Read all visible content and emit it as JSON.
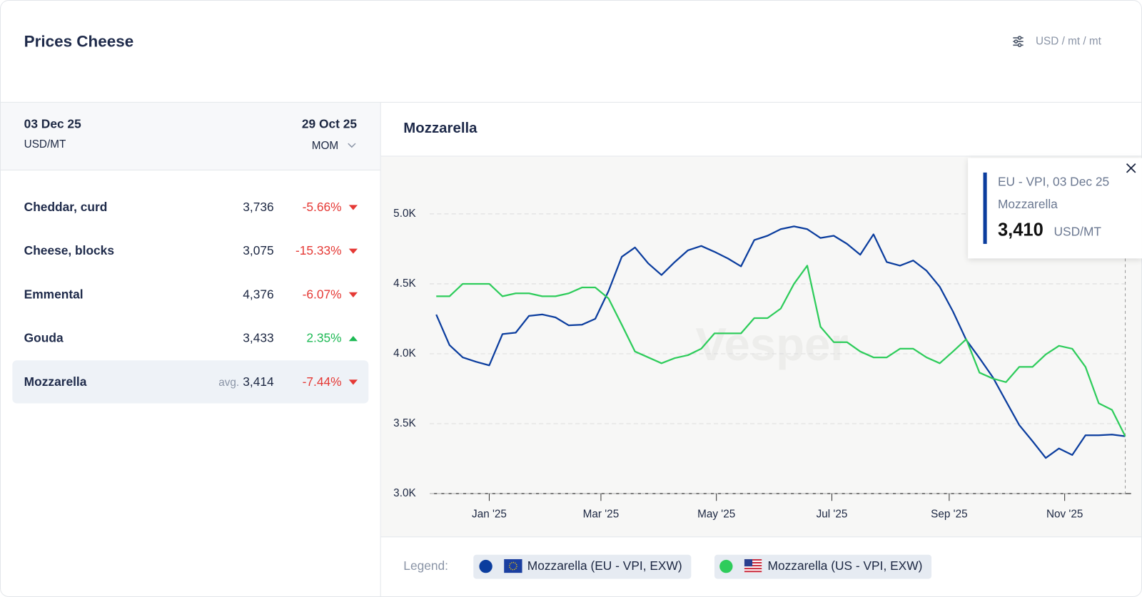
{
  "header": {
    "title": "Prices Cheese",
    "unit_selector": "USD / mt / mt"
  },
  "table": {
    "date": "03 Dec 25",
    "unit": "USD/MT",
    "compare_date": "29 Oct 25",
    "period": "MOM",
    "rows": [
      {
        "name": "Cheddar, curd",
        "price": "3,736",
        "change": "-5.66%",
        "trend": "down"
      },
      {
        "name": "Cheese, blocks",
        "price": "3,075",
        "change": "-15.33%",
        "trend": "down"
      },
      {
        "name": "Emmental",
        "price": "4,376",
        "change": "-6.07%",
        "trend": "down"
      },
      {
        "name": "Gouda",
        "price": "3,433",
        "change": "2.35%",
        "trend": "up"
      },
      {
        "name": "Mozzarella",
        "price_prefix": "avg.",
        "price": "3,414",
        "change": "-7.44%",
        "trend": "down",
        "selected": true
      }
    ]
  },
  "chart_data": {
    "type": "line",
    "title": "Mozzarella",
    "watermark": "Vesper",
    "legend_title": "Legend:",
    "x": [
      "2024-12-04",
      "2024-12-11",
      "2024-12-18",
      "2024-12-25",
      "2025-01-01",
      "2025-01-08",
      "2025-01-15",
      "2025-01-22",
      "2025-01-29",
      "2025-02-05",
      "2025-02-12",
      "2025-02-19",
      "2025-02-26",
      "2025-03-05",
      "2025-03-12",
      "2025-03-19",
      "2025-03-26",
      "2025-04-02",
      "2025-04-09",
      "2025-04-16",
      "2025-04-23",
      "2025-04-30",
      "2025-05-07",
      "2025-05-14",
      "2025-05-21",
      "2025-05-28",
      "2025-06-04",
      "2025-06-11",
      "2025-06-18",
      "2025-06-25",
      "2025-07-02",
      "2025-07-09",
      "2025-07-16",
      "2025-07-23",
      "2025-07-30",
      "2025-08-06",
      "2025-08-13",
      "2025-08-20",
      "2025-08-27",
      "2025-09-03",
      "2025-09-10",
      "2025-09-17",
      "2025-09-24",
      "2025-10-01",
      "2025-10-08",
      "2025-10-15",
      "2025-10-22",
      "2025-10-29",
      "2025-11-05",
      "2025-11-12",
      "2025-11-19",
      "2025-11-26",
      "2025-12-03"
    ],
    "xlim": [
      "2024-12-04",
      "2025-12-03"
    ],
    "xticks": [
      {
        "value": "2025-01-01",
        "label": "Jan '25"
      },
      {
        "value": "2025-03-01",
        "label": "Mar '25"
      },
      {
        "value": "2025-05-01",
        "label": "May '25"
      },
      {
        "value": "2025-07-01",
        "label": "Jul '25"
      },
      {
        "value": "2025-09-01",
        "label": "Sep '25"
      },
      {
        "value": "2025-11-01",
        "label": "Nov '25"
      }
    ],
    "ylim": [
      3000,
      5400
    ],
    "yticks": [
      {
        "value": 3000,
        "label": "3.0K"
      },
      {
        "value": 3500,
        "label": "3.5K"
      },
      {
        "value": 4000,
        "label": "4.0K"
      },
      {
        "value": 4500,
        "label": "4.5K"
      },
      {
        "value": 5000,
        "label": "5.0K"
      }
    ],
    "grid": true,
    "series": [
      {
        "name": "Mozzarella (EU - VPI, EXW)",
        "color": "#0b3d9e",
        "values": [
          4280,
          4062,
          3974,
          3943,
          3917,
          4141,
          4151,
          4271,
          4281,
          4260,
          4203,
          4208,
          4250,
          4448,
          4693,
          4760,
          4646,
          4563,
          4656,
          4740,
          4771,
          4729,
          4682,
          4625,
          4813,
          4844,
          4891,
          4911,
          4891,
          4828,
          4844,
          4786,
          4708,
          4854,
          4656,
          4630,
          4667,
          4594,
          4479,
          4302,
          4099,
          3969,
          3833,
          3661,
          3490,
          3375,
          3255,
          3323,
          3276,
          3417,
          3417,
          3422,
          3410
        ]
      },
      {
        "name": "Mozzarella (US - VPI, EXW)",
        "color": "#2ecc5b",
        "values": [
          4411,
          4411,
          4500,
          4500,
          4500,
          4411,
          4432,
          4432,
          4411,
          4411,
          4432,
          4474,
          4474,
          4396,
          4208,
          4016,
          3974,
          3932,
          3969,
          3990,
          4036,
          4146,
          4146,
          4146,
          4255,
          4255,
          4323,
          4500,
          4630,
          4193,
          4083,
          4083,
          4016,
          3974,
          3974,
          4036,
          4036,
          3974,
          3932,
          4016,
          4104,
          3865,
          3823,
          3797,
          3906,
          3906,
          3995,
          4057,
          4036,
          3906,
          3646,
          3599,
          3410
        ]
      }
    ],
    "tooltip": {
      "title": "EU - VPI, 03 Dec 25",
      "product": "Mozzarella",
      "value_label": "3,410",
      "unit": "USD/MT"
    }
  }
}
